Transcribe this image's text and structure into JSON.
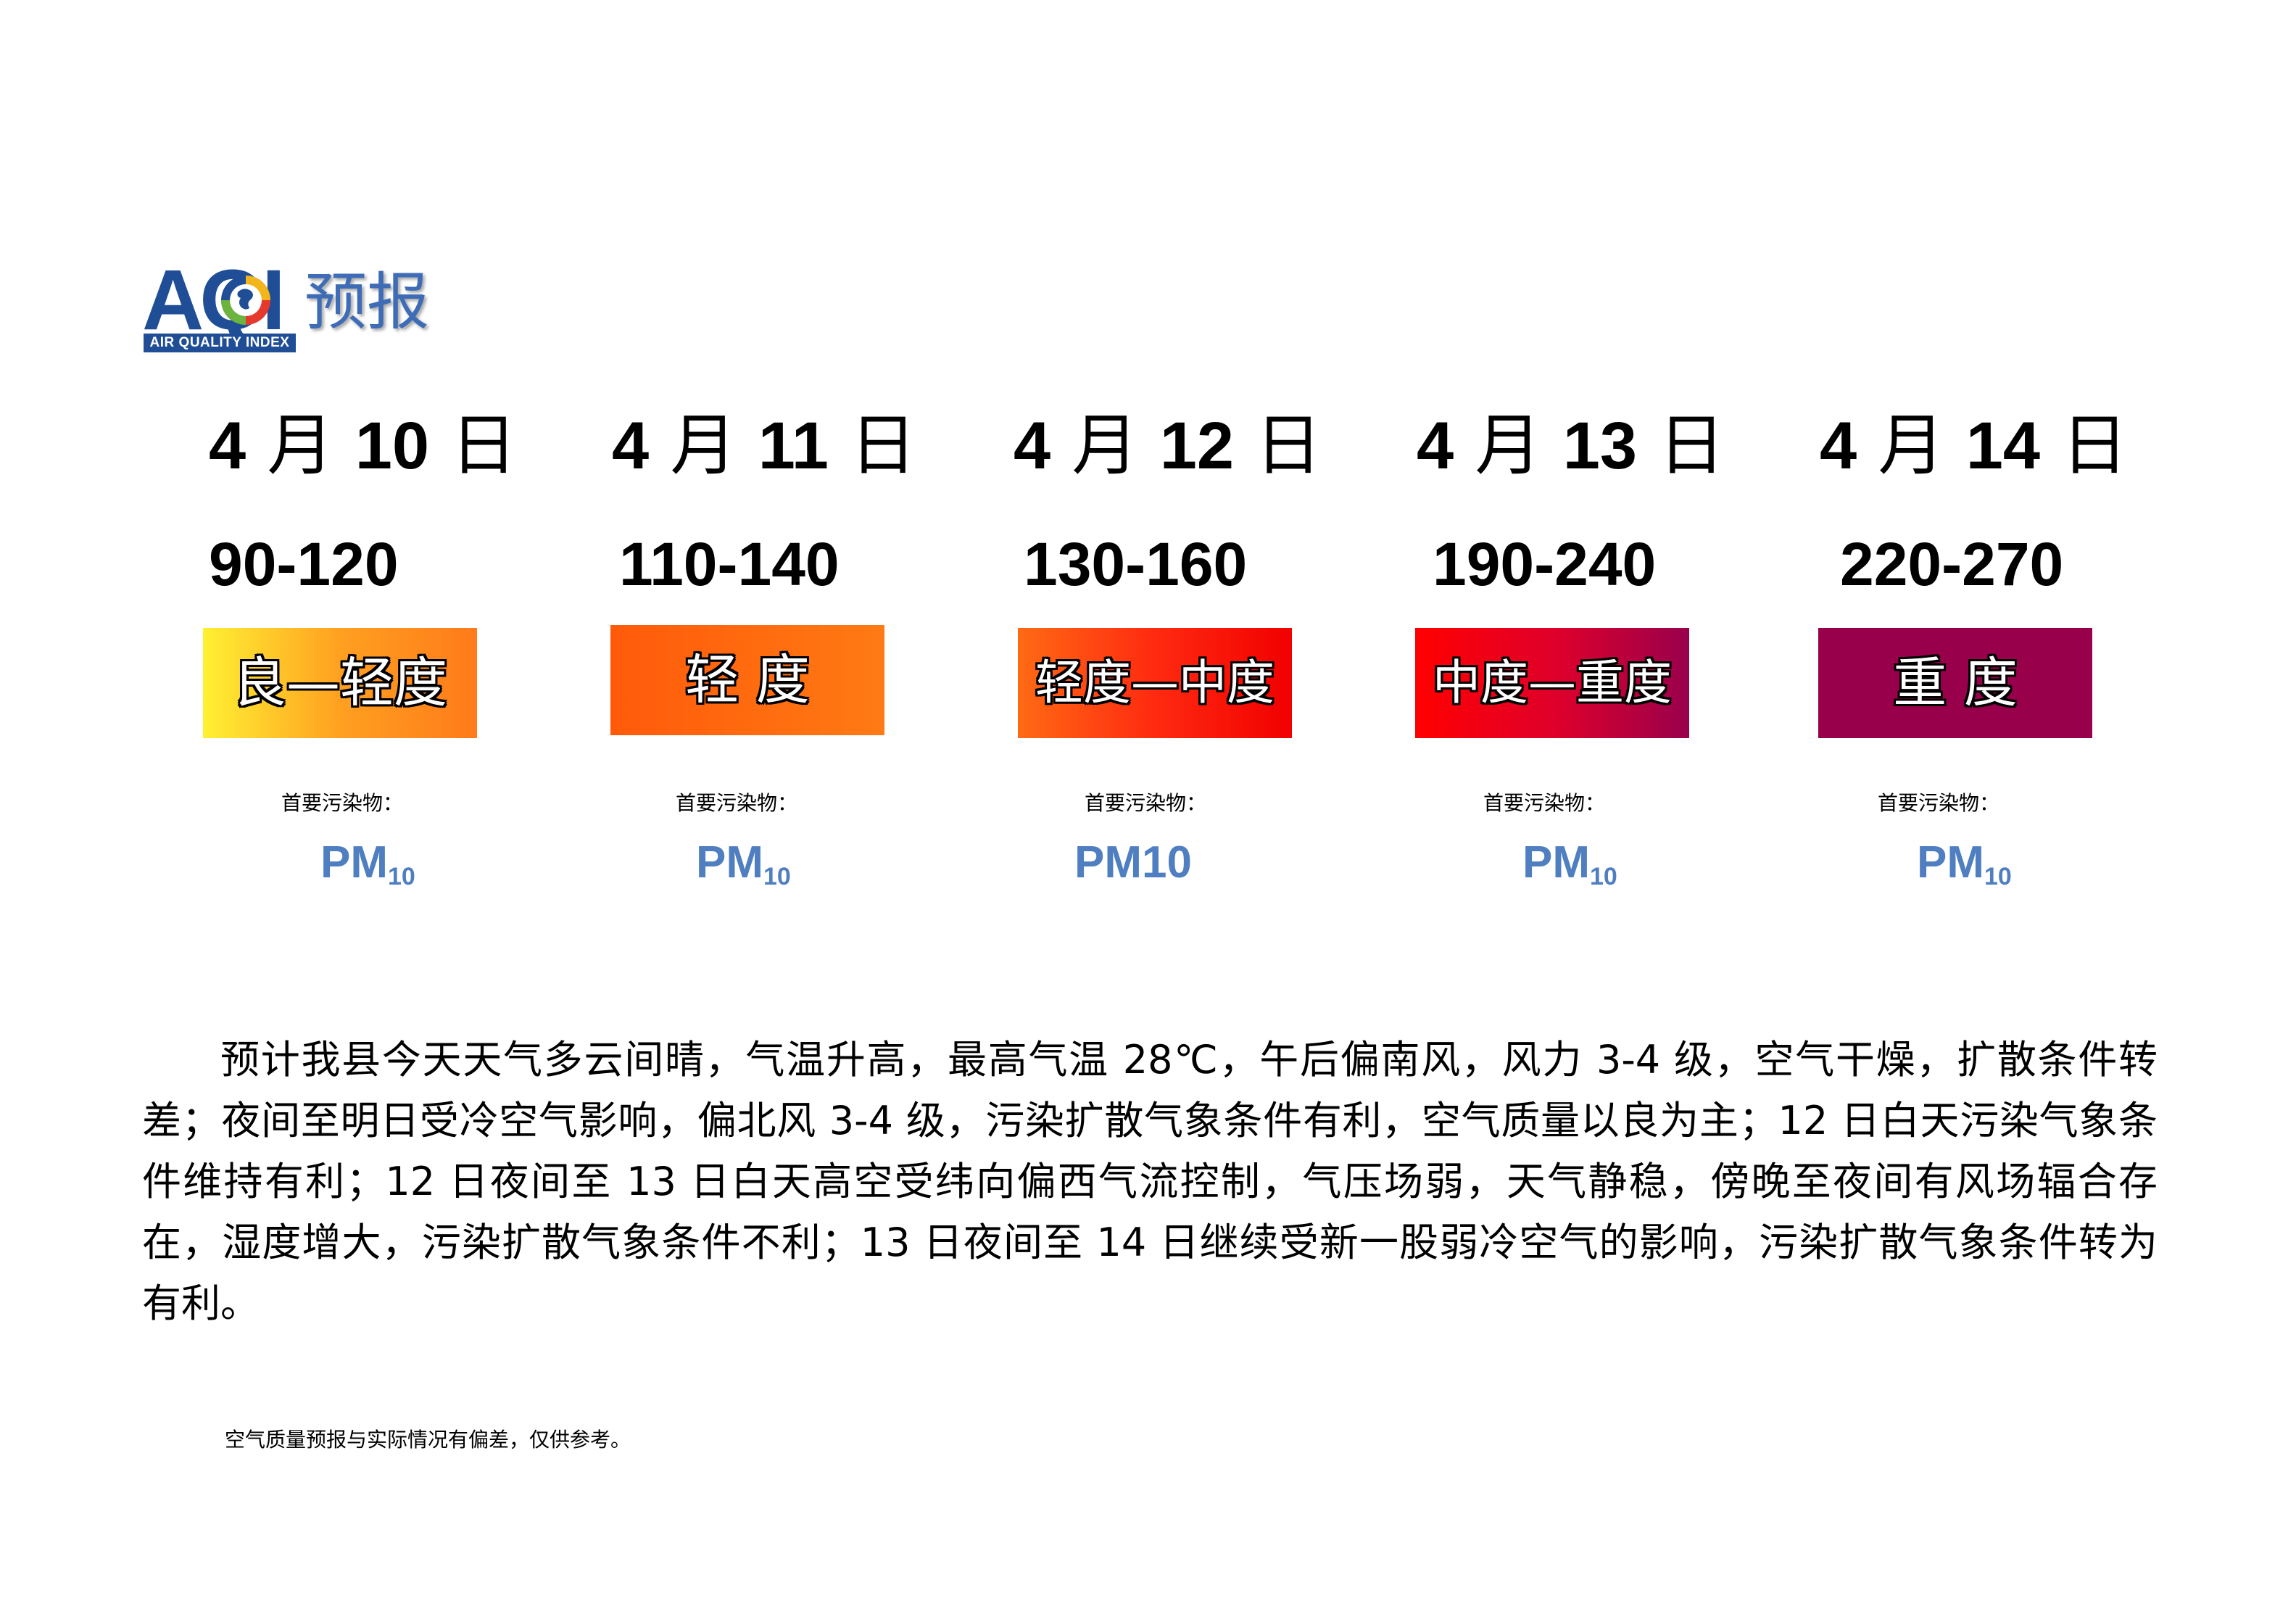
{
  "logo": {
    "aqi": "AQI",
    "band": "AIR QUALITY INDEX",
    "title": "预报"
  },
  "days": [
    {
      "month": "4",
      "month_unit": "月",
      "day": "10",
      "day_unit": "日",
      "range": "90-120",
      "level": "良—轻度",
      "pollutant_label": "首要污染物：",
      "pollutant_main": "PM",
      "pollutant_sub": "10",
      "colors": [
        "#fff033",
        "#ffa020",
        "#ff7a1a"
      ]
    },
    {
      "month": "4",
      "month_unit": "月",
      "day": "11",
      "day_unit": "日",
      "range": "110-140",
      "level": "轻 度",
      "pollutant_label": "首要污染物：",
      "pollutant_main": "PM",
      "pollutant_sub": "10",
      "colors": [
        "#ff5a0a",
        "#ff7a14"
      ]
    },
    {
      "month": "4",
      "month_unit": "月",
      "day": "12",
      "day_unit": "日",
      "range": "130-160",
      "level": "轻度—中度",
      "pollutant_label": "首要污染物：",
      "pollutant_main": "PM10",
      "pollutant_sub": "",
      "colors": [
        "#ff6a14",
        "#ff2a10",
        "#f10000"
      ]
    },
    {
      "month": "4",
      "month_unit": "月",
      "day": "13",
      "day_unit": "日",
      "range": "190-240",
      "level": "中度—重度",
      "pollutant_label": "首要污染物：",
      "pollutant_main": "PM",
      "pollutant_sub": "10",
      "colors": [
        "#ff0000",
        "#e0002a",
        "#99004c"
      ]
    },
    {
      "month": "4",
      "month_unit": "月",
      "day": "14",
      "day_unit": "日",
      "range": "220-270",
      "level": "重 度",
      "pollutant_label": "首要污染物：",
      "pollutant_main": "PM",
      "pollutant_sub": "10",
      "colors": [
        "#99004c",
        "#99004c"
      ]
    }
  ],
  "paragraph": "预计我县今天天气多云间晴，气温升高，最高气温 28℃，午后偏南风，风力 3-4 级，空气干燥，扩散条件转差；夜间至明日受冷空气影响，偏北风 3-4 级，污染扩散气象条件有利，空气质量以良为主；12 日白天污染气象条件维持有利；12 日夜间至 13 日白天高空受纬向偏西气流控制，气压场弱，天气静稳，傍晚至夜间有风场辐合存在，湿度增大，污染扩散气象条件不利；13 日夜间至 14 日继续受新一股弱冷空气的影响，污染扩散气象条件转为有利。",
  "disclaimer": "空气质量预报与实际情况有偏差，仅供参考。"
}
